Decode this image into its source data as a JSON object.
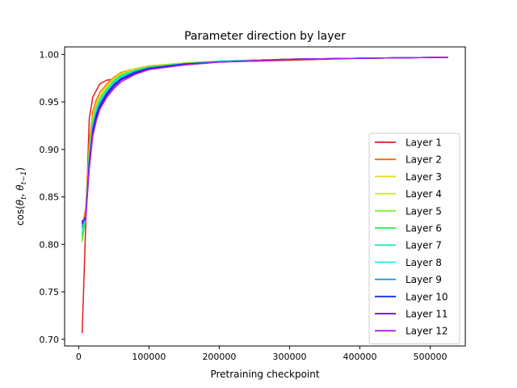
{
  "chart_data": {
    "type": "line",
    "title": "Parameter direction by layer",
    "xlabel": "Pretraining checkpoint",
    "ylabel_parts": {
      "base": "cos(",
      "theta": "θ",
      "sub_t": "t",
      "sep": ", ",
      "sub_t1": "t−1",
      "close": ")"
    },
    "xlim": [
      -20000,
      550000
    ],
    "ylim": [
      0.693,
      1.008
    ],
    "xticks": [
      0,
      100000,
      200000,
      300000,
      400000,
      500000
    ],
    "xtick_labels": [
      "0",
      "100000",
      "200000",
      "300000",
      "400000",
      "500000"
    ],
    "yticks": [
      0.7,
      0.75,
      0.8,
      0.85,
      0.9,
      0.95,
      1.0
    ],
    "ytick_labels": [
      "0.70",
      "0.75",
      "0.80",
      "0.85",
      "0.90",
      "0.95",
      "1.00"
    ],
    "grid": false,
    "legend_placement": "center-right",
    "x": [
      5000,
      10000,
      15000,
      20000,
      25000,
      30000,
      40000,
      50000,
      60000,
      80000,
      100000,
      150000,
      200000,
      300000,
      400000,
      525000
    ],
    "series": [
      {
        "name": "Layer 1",
        "color": "#e41a1c",
        "values": [
          0.707,
          0.82,
          0.932,
          0.955,
          0.962,
          0.969,
          0.973,
          0.974,
          0.977,
          0.983,
          0.986,
          0.99,
          0.992,
          0.994,
          0.996,
          0.997
        ]
      },
      {
        "name": "Layer 2",
        "color": "#ff6a00",
        "values": [
          0.818,
          0.838,
          0.906,
          0.94,
          0.952,
          0.96,
          0.969,
          0.976,
          0.981,
          0.985,
          0.988,
          0.991,
          0.993,
          0.995,
          0.996,
          0.997
        ]
      },
      {
        "name": "Layer 3",
        "color": "#e6d51d",
        "values": [
          0.81,
          0.833,
          0.9,
          0.934,
          0.948,
          0.957,
          0.967,
          0.975,
          0.98,
          0.985,
          0.988,
          0.991,
          0.993,
          0.995,
          0.996,
          0.997
        ]
      },
      {
        "name": "Layer 4",
        "color": "#c0ef1a",
        "values": [
          0.806,
          0.83,
          0.897,
          0.931,
          0.946,
          0.955,
          0.966,
          0.974,
          0.979,
          0.984,
          0.987,
          0.991,
          0.993,
          0.995,
          0.996,
          0.997
        ]
      },
      {
        "name": "Layer 5",
        "color": "#7ef22a",
        "values": [
          0.803,
          0.828,
          0.894,
          0.929,
          0.944,
          0.953,
          0.964,
          0.973,
          0.978,
          0.984,
          0.987,
          0.991,
          0.993,
          0.995,
          0.996,
          0.997
        ]
      },
      {
        "name": "Layer 6",
        "color": "#1ef04a",
        "values": [
          0.808,
          0.828,
          0.893,
          0.928,
          0.943,
          0.952,
          0.963,
          0.972,
          0.978,
          0.983,
          0.987,
          0.99,
          0.993,
          0.995,
          0.996,
          0.997
        ]
      },
      {
        "name": "Layer 7",
        "color": "#20eea0",
        "values": [
          0.812,
          0.829,
          0.891,
          0.926,
          0.941,
          0.951,
          0.962,
          0.971,
          0.977,
          0.983,
          0.986,
          0.99,
          0.993,
          0.995,
          0.996,
          0.997
        ]
      },
      {
        "name": "Layer 8",
        "color": "#1ef0f0",
        "values": [
          0.816,
          0.83,
          0.889,
          0.924,
          0.94,
          0.95,
          0.961,
          0.97,
          0.976,
          0.982,
          0.986,
          0.99,
          0.993,
          0.995,
          0.996,
          0.997
        ]
      },
      {
        "name": "Layer 9",
        "color": "#1c90d8",
        "values": [
          0.819,
          0.83,
          0.887,
          0.922,
          0.938,
          0.948,
          0.96,
          0.969,
          0.975,
          0.982,
          0.986,
          0.99,
          0.992,
          0.995,
          0.996,
          0.997
        ]
      },
      {
        "name": "Layer 10",
        "color": "#1230e8",
        "values": [
          0.822,
          0.829,
          0.885,
          0.92,
          0.936,
          0.946,
          0.959,
          0.968,
          0.974,
          0.981,
          0.985,
          0.99,
          0.992,
          0.995,
          0.996,
          0.997
        ]
      },
      {
        "name": "Layer 11",
        "color": "#5a0ad0",
        "values": [
          0.824,
          0.828,
          0.882,
          0.917,
          0.933,
          0.944,
          0.957,
          0.966,
          0.973,
          0.98,
          0.985,
          0.989,
          0.992,
          0.995,
          0.996,
          0.997
        ]
      },
      {
        "name": "Layer 12",
        "color": "#b01cf0",
        "values": [
          0.825,
          0.826,
          0.879,
          0.914,
          0.93,
          0.942,
          0.955,
          0.964,
          0.971,
          0.979,
          0.984,
          0.989,
          0.992,
          0.995,
          0.996,
          0.997
        ]
      }
    ]
  }
}
